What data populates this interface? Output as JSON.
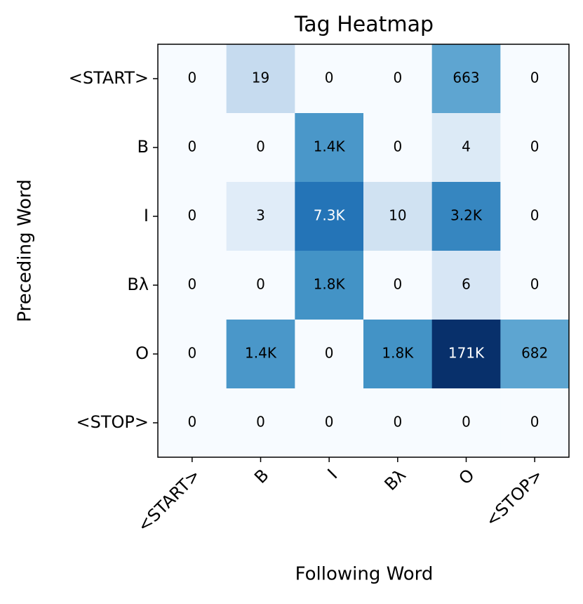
{
  "chart_data": {
    "type": "heatmap",
    "title": "Tag Heatmap",
    "xlabel": "Following Word",
    "ylabel": "Preceding Word",
    "x_categories": [
      "<START>",
      "B",
      "I",
      "Bλ",
      "O",
      "<STOP>"
    ],
    "y_categories": [
      "<START>",
      "B",
      "I",
      "Bλ",
      "O",
      "<STOP>"
    ],
    "colormap": "Blues",
    "color_scale": "log",
    "values": [
      [
        0,
        19,
        0,
        0,
        663,
        0
      ],
      [
        0,
        0,
        1400,
        0,
        4,
        0
      ],
      [
        0,
        3,
        7300,
        10,
        3200,
        0
      ],
      [
        0,
        0,
        1800,
        0,
        6,
        0
      ],
      [
        0,
        1400,
        0,
        1800,
        171000,
        682
      ],
      [
        0,
        0,
        0,
        0,
        0,
        0
      ]
    ],
    "value_labels": [
      [
        "0",
        "19",
        "0",
        "0",
        "663",
        "0"
      ],
      [
        "0",
        "0",
        "1.4K",
        "0",
        "4",
        "0"
      ],
      [
        "0",
        "3",
        "7.3K",
        "10",
        "3.2K",
        "0"
      ],
      [
        "0",
        "0",
        "1.8K",
        "0",
        "6",
        "0"
      ],
      [
        "0",
        "1.4K",
        "0",
        "1.8K",
        "171K",
        "682"
      ],
      [
        "0",
        "0",
        "0",
        "0",
        "0",
        "0"
      ]
    ]
  }
}
